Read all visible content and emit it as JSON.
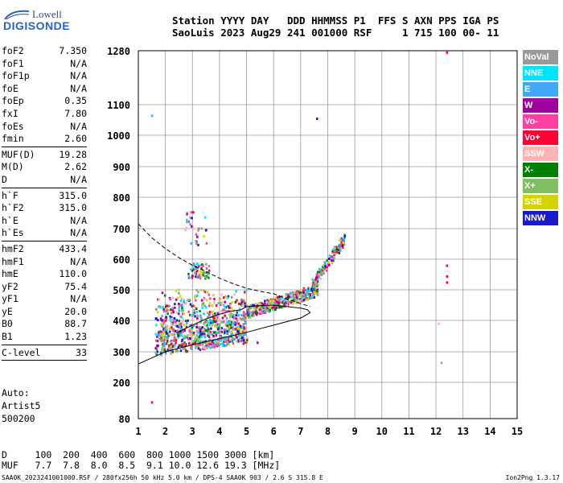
{
  "logo": {
    "line1": "Lowell",
    "line2": "DIGISONDE"
  },
  "header": {
    "line1": "Station YYYY DAY   DDD HHMMSS P1  FFS S AXN PPS IGA PS",
    "line2": "SaoLuis 2023 Aug29 241 001000 RSF     1 715 100 00- 11"
  },
  "params": {
    "group1": [
      {
        "key": "foF2",
        "value": "7.350"
      },
      {
        "key": "foF1",
        "value": "N/A"
      },
      {
        "key": "foF1p",
        "value": "N/A"
      },
      {
        "key": "foE",
        "value": "N/A"
      },
      {
        "key": "foEp",
        "value": "0.35"
      },
      {
        "key": "fxI",
        "value": "7.80"
      },
      {
        "key": "foEs",
        "value": "N/A"
      },
      {
        "key": "fmin",
        "value": "2.60"
      }
    ],
    "group2": [
      {
        "key": "MUF(D)",
        "value": "19.28"
      },
      {
        "key": "M(D)",
        "value": "2.62"
      },
      {
        "key": "D",
        "value": "N/A"
      }
    ],
    "group3": [
      {
        "key": "h`F",
        "value": "315.0"
      },
      {
        "key": "h`F2",
        "value": "315.0"
      },
      {
        "key": "h`E",
        "value": "N/A"
      },
      {
        "key": "h`Es",
        "value": "N/A"
      }
    ],
    "group4": [
      {
        "key": "hmF2",
        "value": "433.4"
      },
      {
        "key": "hmF1",
        "value": "N/A"
      },
      {
        "key": "hmE",
        "value": "110.0"
      },
      {
        "key": "yF2",
        "value": "75.4"
      },
      {
        "key": "yF1",
        "value": "N/A"
      },
      {
        "key": "yE",
        "value": "20.0"
      },
      {
        "key": "B0",
        "value": "88.7"
      },
      {
        "key": "B1",
        "value": "1.23"
      }
    ],
    "group5": [
      {
        "key": "C-level",
        "value": "33"
      }
    ]
  },
  "auto": {
    "line1": "Auto:",
    "line2": "Artist5",
    "line3": "500200"
  },
  "dmuf": {
    "line1": "D     100  200  400  600  800 1000 1500 3000 [km]",
    "line2": "MUF   7.7  7.8  8.0  8.5  9.1 10.0 12.6 19.3 [MHz]"
  },
  "footer": {
    "text": "SAA0K_2023241001000.RSF / 280fx256h 50 kHz 5.0 km / DPS-4 SAA0K 903 / 2.6 S 315.8 E",
    "version": "Ion2Png 1.3.17"
  },
  "legend": [
    {
      "label": "NoVal",
      "color": "#999999"
    },
    {
      "label": "NNE",
      "color": "#00e5ff"
    },
    {
      "label": "E",
      "color": "#3fa9f5"
    },
    {
      "label": "W",
      "color": "#a0009f"
    },
    {
      "label": "Vo-",
      "color": "#ff3fa0"
    },
    {
      "label": "Vo+",
      "color": "#ff0033"
    },
    {
      "label": "SSW",
      "color": "#ffb3b3"
    },
    {
      "label": "X-",
      "color": "#008000"
    },
    {
      "label": "X+",
      "color": "#7fbf5f"
    },
    {
      "label": "SSE",
      "color": "#d4d400"
    },
    {
      "label": "NNW",
      "color": "#1a1acc"
    }
  ],
  "chart_data": {
    "type": "scatter",
    "xlabel": "",
    "ylabel": "",
    "xlim": [
      1,
      15
    ],
    "ylim": [
      80,
      1280
    ],
    "x_ticks": [
      1,
      2,
      3,
      4,
      5,
      6,
      7,
      8,
      9,
      10,
      11,
      12,
      13,
      14,
      15
    ],
    "y_ticks": [
      80,
      200,
      300,
      400,
      500,
      600,
      700,
      800,
      900,
      1000,
      1100,
      1280
    ],
    "grid": true,
    "scale": "ionogram virtual height vs frequency (MHz, km)",
    "echo_clusters": [
      {
        "name": "F-trace low",
        "fmin": 1.6,
        "fmax": 5.0,
        "hmin": 285,
        "hmax": 520,
        "count": 900
      },
      {
        "name": "F-trace spread",
        "fmin": 2.8,
        "fmax": 3.6,
        "hmin": 540,
        "hmax": 590,
        "count": 60
      },
      {
        "name": "F-trace rising",
        "fmin": 5.0,
        "fmax": 7.6,
        "hmin": 420,
        "hmax": 560,
        "count": 400
      },
      {
        "name": "F-trace top",
        "fmin": 7.4,
        "fmax": 8.6,
        "hmin": 500,
        "hmax": 700,
        "count": 150
      },
      {
        "name": "Second hop spots",
        "fmin": 2.7,
        "fmax": 3.5,
        "hmin": 650,
        "hmax": 760,
        "count": 30
      }
    ],
    "isolated_points": [
      {
        "x": 1.5,
        "y": 1065,
        "color": "#3fa9f5"
      },
      {
        "x": 7.6,
        "y": 1055,
        "color": "#1a1acc"
      },
      {
        "x": 12.4,
        "y": 1275,
        "color": "#ff0033"
      },
      {
        "x": 1.5,
        "y": 135,
        "color": "#ff0033"
      },
      {
        "x": 12.4,
        "y": 580,
        "color": "#ff0033"
      },
      {
        "x": 12.4,
        "y": 545,
        "color": "#ff0033"
      },
      {
        "x": 12.4,
        "y": 525,
        "color": "#ff0033"
      },
      {
        "x": 12.2,
        "y": 265,
        "color": "#7fbf5f"
      },
      {
        "x": 12.1,
        "y": 390,
        "color": "#ffb3b3"
      },
      {
        "x": 5.4,
        "y": 330,
        "color": "#a0009f"
      }
    ],
    "profile_dashed": [
      [
        1,
        715
      ],
      [
        1.5,
        670
      ],
      [
        2,
        635
      ],
      [
        2.5,
        605
      ],
      [
        3,
        580
      ],
      [
        3.5,
        560
      ],
      [
        4,
        538
      ],
      [
        4.5,
        520
      ],
      [
        5,
        505
      ],
      [
        5.5,
        495
      ],
      [
        6,
        487
      ],
      [
        6.5,
        470
      ],
      [
        7,
        455
      ],
      [
        7.35,
        445
      ]
    ],
    "profile_solid_upper": [
      [
        2.4,
        360
      ],
      [
        3,
        385
      ],
      [
        3.5,
        405
      ],
      [
        4,
        420
      ],
      [
        4.4,
        430
      ],
      [
        4.8,
        435
      ]
    ],
    "profile_solid_lower": [
      [
        1,
        260
      ],
      [
        1.5,
        280
      ],
      [
        2,
        300
      ],
      [
        3,
        322
      ],
      [
        4,
        342
      ],
      [
        5,
        362
      ],
      [
        6,
        385
      ],
      [
        7,
        408
      ],
      [
        7.35,
        425
      ],
      [
        7.25,
        435
      ],
      [
        7,
        440
      ],
      [
        6.5,
        445
      ],
      [
        6,
        450
      ],
      [
        5.5,
        448
      ],
      [
        5,
        445
      ],
      [
        4.8,
        435
      ]
    ]
  }
}
